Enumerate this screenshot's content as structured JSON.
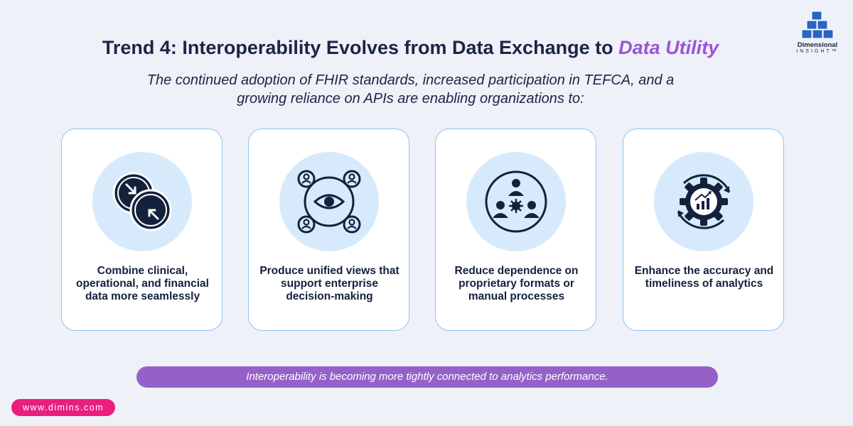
{
  "header": {
    "title_main": "Trend 4: Interoperability Evolves from Data Exchange to ",
    "title_accent": "Data Utility",
    "subtitle": "The continued adoption of FHIR standards, increased participation in TEFCA, and a growing reliance on APIs are enabling organizations to:"
  },
  "logo": {
    "line1": "Dimensional",
    "line2": "INSIGHT™",
    "icon": "stacked-cubes-logo"
  },
  "cards": [
    {
      "text": "Combine clinical, operational, and financial data more seamlessly",
      "icon": "sync-circles-icon"
    },
    {
      "text": "Produce unified views that support enterprise decision-making",
      "icon": "eye-network-icon"
    },
    {
      "text": "Reduce dependence on proprietary formats or manual processes",
      "icon": "people-gear-icon"
    },
    {
      "text": "Enhance the accuracy and timeliness of analytics",
      "icon": "gear-analytics-icon"
    }
  ],
  "banner": {
    "text": "Interoperability is becoming more tightly connected to analytics performance."
  },
  "footer": {
    "url": "www.dimins.com"
  },
  "colors": {
    "background": "#eef1f8",
    "accent_purple": "#9a55d6",
    "banner_purple": "#9561c8",
    "url_pink": "#ea1e7f",
    "card_border": "#8cc4ef",
    "icon_circle": "#d6eafb",
    "text_dark": "#14213d"
  }
}
